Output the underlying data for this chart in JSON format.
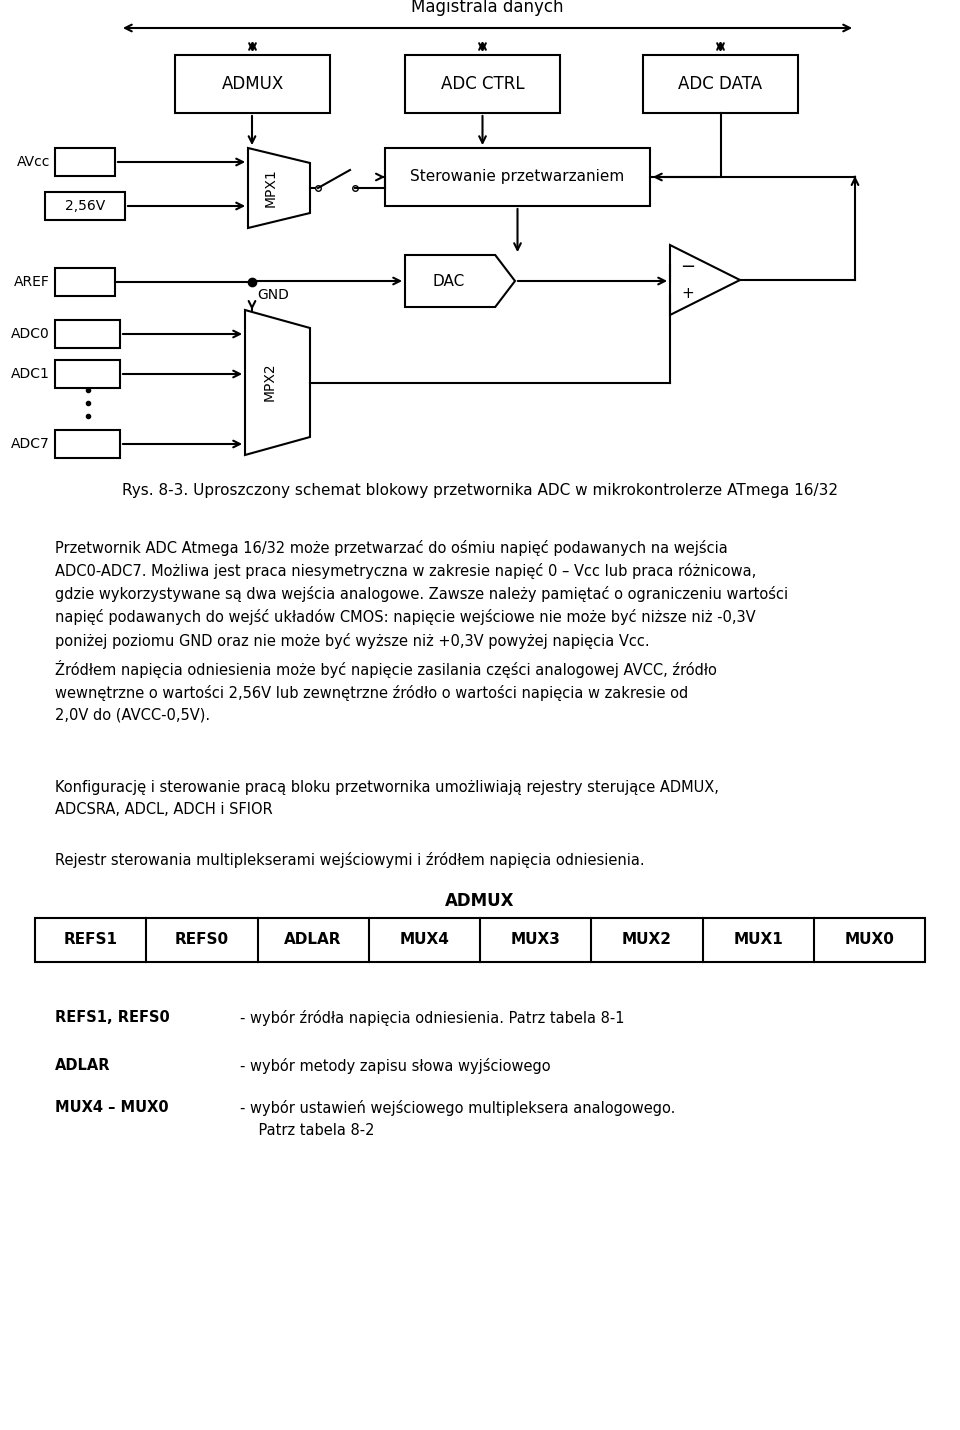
{
  "bg_color": "#ffffff",
  "fig_width": 9.6,
  "fig_height": 14.3,
  "dpi": 100,
  "magistrala_text": "Magistrala danych",
  "caption": "Rys. 8-3. Uproszczony schemat blokowy przetwornika ADC w mikrokontrolerze ATmega 16/32",
  "para1": "Przetwornik ADC Atmega 16/32 może przetwarzać do ośmiu napięć podawanych na wejścia\nADC0-ADC7. Możliwa jest praca niesymetryczna w zakresie napięć 0 – Vcc lub praca różnicowa,\ngdzie wykorzystywane są dwa wejścia analogowe. Zawsze należy pamiętać o ograniczeniu wartości\nnapięć podawanych do wejść układów CMOS: napięcie wejściowe nie może być niższe niż -0,3V\nponiżej poziomu GND oraz nie może być wyższe niż +0,3V powyżej napięcia Vcc.",
  "para2": "Źródłem napięcia odniesienia może być napięcie zasilania części analogowej AVCC, źródło\nwewnętrzne o wartości 2,56V lub zewnętrzne źródło o wartości napięcia w zakresie od\n2,0V do (AVCC-0,5V).",
  "para3": "Konfigurację i sterowanie pracą bloku przetwornika umożliwiają rejestry sterujące ADMUX,\nADCSRA, ADCL, ADCH i SFIOR",
  "para4": "Rejestr sterowania multiplekserami wejściowymi i źródłem napięcia odniesienia.",
  "admux_label": "ADMUX",
  "table_headers": [
    "REFS1",
    "REFS0",
    "ADLAR",
    "MUX4",
    "MUX3",
    "MUX2",
    "MUX1",
    "MUX0"
  ],
  "desc_items": [
    {
      "bold": "REFS1, REFS0",
      "text": "- wybór źródła napięcia odniesienia. Patrz tabela 8-1"
    },
    {
      "bold": "ADLAR",
      "text": "- wybór metody zapisu słowa wyjściowego"
    },
    {
      "bold": "MUX4 – MUX0",
      "text": "- wybór ustawień wejściowego multipleksera analogowego.\n    Patrz tabela 8-2"
    }
  ],
  "lw": 1.5,
  "fs_main": 11,
  "fs_body": 10.5
}
